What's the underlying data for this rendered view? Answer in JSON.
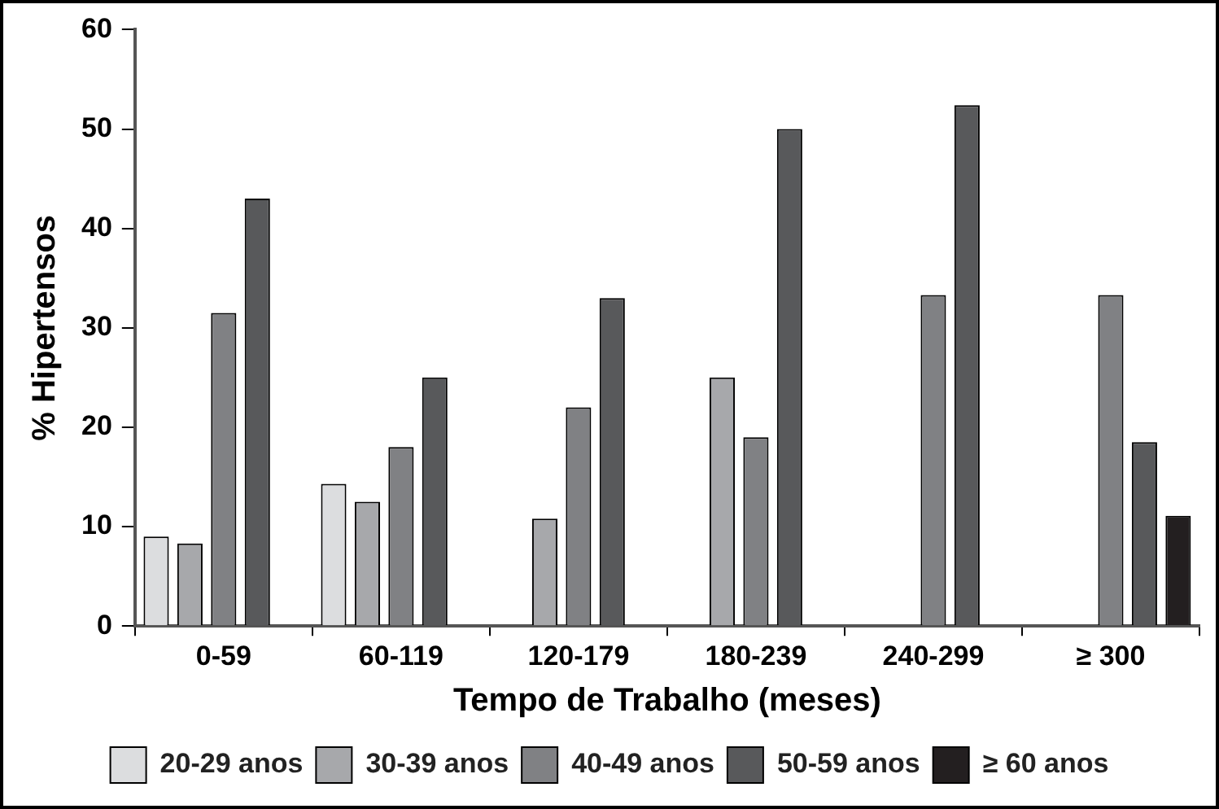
{
  "chart_data": {
    "type": "bar",
    "xlabel": "Tempo de Trabalho (meses)",
    "ylabel": "% Hipertensos",
    "categories": [
      "0-59",
      "60-119",
      "120-179",
      "180-239",
      "240-299",
      "≥ 300"
    ],
    "series": [
      {
        "name": "20-29 anos",
        "color": "#dcdddf",
        "values": [
          9,
          14.3,
          0,
          0,
          0,
          0
        ]
      },
      {
        "name": "30-39 anos",
        "color": "#a7a8ab",
        "values": [
          8.3,
          12.5,
          10.8,
          25,
          0,
          0
        ]
      },
      {
        "name": "40-49 anos",
        "color": "#808184",
        "values": [
          31.5,
          18,
          22,
          19,
          33.3,
          33.3
        ]
      },
      {
        "name": "50-59 anos",
        "color": "#58595b",
        "values": [
          43,
          25,
          33,
          50,
          52.4,
          18.5
        ]
      },
      {
        "name": "≥ 60 anos",
        "color": "#231f20",
        "values": [
          0,
          0,
          0,
          0,
          0,
          11.1
        ]
      }
    ],
    "ylim": [
      0,
      60
    ],
    "yticks": [
      0,
      10,
      20,
      30,
      40,
      50,
      60
    ],
    "grid": false,
    "legend": "bottom"
  }
}
